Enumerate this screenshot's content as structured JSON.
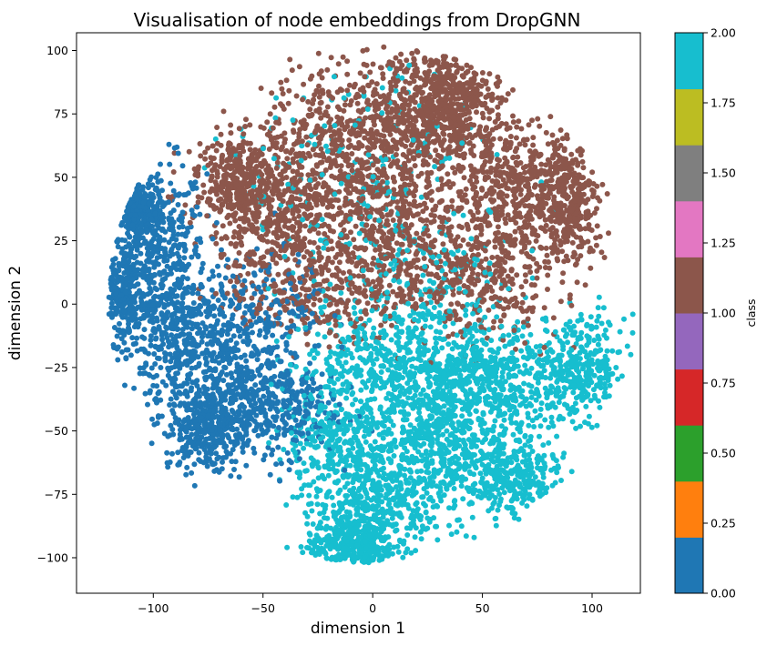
{
  "chart_data": {
    "type": "scatter",
    "title": "Visualisation of node embeddings from DropGNN",
    "xlabel": "dimension 1",
    "ylabel": "dimension 2",
    "xlim": [
      -135,
      122
    ],
    "ylim": [
      -114,
      107
    ],
    "xticks": [
      -100,
      -50,
      0,
      50,
      100
    ],
    "xtick_labels": [
      "−100",
      "−50",
      "0",
      "50",
      "100"
    ],
    "yticks": [
      -100,
      -75,
      -50,
      -25,
      0,
      25,
      50,
      75,
      100
    ],
    "ytick_labels": [
      "−100",
      "−75",
      "−50",
      "−25",
      "0",
      "25",
      "50",
      "75",
      "100"
    ],
    "grid": false,
    "colorbar": {
      "label": "class",
      "range": [
        0,
        2
      ],
      "ticks": [
        0,
        0.25,
        0.5,
        0.75,
        1.0,
        1.25,
        1.5,
        1.75,
        2.0
      ],
      "tick_labels": [
        "0.00",
        "0.25",
        "0.50",
        "0.75",
        "1.00",
        "1.25",
        "1.50",
        "1.75",
        "2.00"
      ],
      "colors": [
        "#1f77b4",
        "#ff7f0e",
        "#2ca02c",
        "#d62728",
        "#9467bd",
        "#8c564b",
        "#e377c2",
        "#7f7f7f",
        "#bcbd22",
        "#17becf"
      ]
    },
    "class_colors": {
      "0": "#1f77b4",
      "1": "#8c564b",
      "2": "#17becf"
    },
    "clusters": [
      {
        "class": 0,
        "count": 520,
        "center": [
          -100,
          20
        ],
        "spread": [
          12,
          18
        ]
      },
      {
        "class": 0,
        "count": 260,
        "center": [
          -110,
          38
        ],
        "spread": [
          6,
          5
        ]
      },
      {
        "class": 0,
        "count": 220,
        "center": [
          -115,
          5
        ],
        "spread": [
          5,
          10
        ]
      },
      {
        "class": 0,
        "count": 420,
        "center": [
          -85,
          -15
        ],
        "spread": [
          14,
          14
        ]
      },
      {
        "class": 0,
        "count": 360,
        "center": [
          -65,
          -35
        ],
        "spread": [
          14,
          13
        ]
      },
      {
        "class": 0,
        "count": 280,
        "center": [
          -75,
          -50
        ],
        "spread": [
          10,
          8
        ]
      },
      {
        "class": 0,
        "count": 220,
        "center": [
          -40,
          -40
        ],
        "spread": [
          12,
          10
        ]
      },
      {
        "class": 0,
        "count": 180,
        "center": [
          -50,
          0
        ],
        "spread": [
          15,
          10
        ]
      },
      {
        "class": 1,
        "count": 520,
        "center": [
          -15,
          60
        ],
        "spread": [
          18,
          18
        ]
      },
      {
        "class": 1,
        "count": 480,
        "center": [
          20,
          75
        ],
        "spread": [
          14,
          13
        ]
      },
      {
        "class": 1,
        "count": 380,
        "center": [
          40,
          80
        ],
        "spread": [
          10,
          12
        ]
      },
      {
        "class": 1,
        "count": 420,
        "center": [
          65,
          45
        ],
        "spread": [
          14,
          13
        ]
      },
      {
        "class": 1,
        "count": 300,
        "center": [
          90,
          40
        ],
        "spread": [
          8,
          12
        ]
      },
      {
        "class": 1,
        "count": 420,
        "center": [
          -45,
          30
        ],
        "spread": [
          16,
          14
        ]
      },
      {
        "class": 1,
        "count": 320,
        "center": [
          -60,
          50
        ],
        "spread": [
          10,
          8
        ]
      },
      {
        "class": 1,
        "count": 520,
        "center": [
          10,
          30
        ],
        "spread": [
          22,
          18
        ]
      },
      {
        "class": 1,
        "count": 320,
        "center": [
          50,
          10
        ],
        "spread": [
          18,
          12
        ]
      },
      {
        "class": 1,
        "count": 240,
        "center": [
          -20,
          5
        ],
        "spread": [
          18,
          10
        ]
      },
      {
        "class": 2,
        "count": 640,
        "center": [
          30,
          -55
        ],
        "spread": [
          20,
          14
        ]
      },
      {
        "class": 2,
        "count": 420,
        "center": [
          0,
          -80
        ],
        "spread": [
          14,
          12
        ]
      },
      {
        "class": 2,
        "count": 320,
        "center": [
          -10,
          -95
        ],
        "spread": [
          10,
          6
        ]
      },
      {
        "class": 2,
        "count": 460,
        "center": [
          55,
          -30
        ],
        "spread": [
          18,
          12
        ]
      },
      {
        "class": 2,
        "count": 320,
        "center": [
          95,
          -25
        ],
        "spread": [
          10,
          10
        ]
      },
      {
        "class": 2,
        "count": 280,
        "center": [
          65,
          -70
        ],
        "spread": [
          10,
          8
        ]
      },
      {
        "class": 2,
        "count": 420,
        "center": [
          10,
          -25
        ],
        "spread": [
          22,
          10
        ]
      },
      {
        "class": 2,
        "count": 260,
        "center": [
          -20,
          -55
        ],
        "spread": [
          12,
          10
        ]
      },
      {
        "class": 2,
        "count": 240,
        "center": [
          20,
          5
        ],
        "spread": [
          25,
          18
        ]
      },
      {
        "class": 2,
        "count": 180,
        "center": [
          -5,
          50
        ],
        "spread": [
          30,
          25
        ]
      }
    ]
  }
}
